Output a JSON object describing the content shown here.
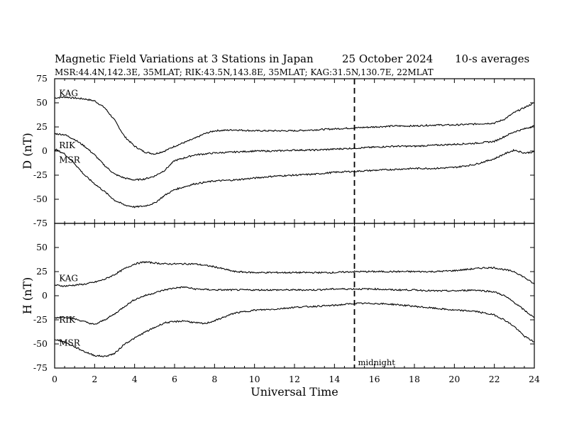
{
  "header": {
    "title": "Magnetic Field Variations at 3 Stations in Japan",
    "date": "25 October 2024",
    "averaging": "10-s averages",
    "stations_line": "MSR:44.4N,142.3E, 35MLAT;  RIK:43.5N,143.8E, 35MLAT;  KAG:31.5N,130.7E, 22MLAT"
  },
  "annotation": {
    "midnight_label": "midnight",
    "midnight_ut": 15
  },
  "chart_data": [
    {
      "type": "line",
      "panel": "top",
      "ylabel": "D (nT)",
      "xlabel": "",
      "xlim": [
        0,
        24
      ],
      "ylim": [
        -75,
        75
      ],
      "yticks": [
        75,
        50,
        25,
        0,
        -25,
        -50,
        -75
      ],
      "series": [
        {
          "name": "KAG",
          "x": [
            0,
            0.5,
            1,
            1.5,
            2,
            2.5,
            3,
            3.5,
            4,
            4.5,
            5,
            5.5,
            6,
            6.5,
            7,
            7.5,
            8,
            9,
            10,
            11,
            12,
            13,
            14,
            15,
            16,
            17,
            18,
            19,
            20,
            21,
            22,
            22.5,
            23,
            23.5,
            24
          ],
          "y": [
            55,
            56,
            55,
            54,
            52,
            45,
            32,
            15,
            5,
            -1,
            -3,
            0,
            5,
            9,
            13,
            18,
            21,
            22,
            21,
            21,
            21,
            22,
            23,
            24,
            25,
            26,
            26,
            27,
            27,
            28,
            29,
            33,
            40,
            45,
            50
          ]
        },
        {
          "name": "RIK",
          "x": [
            0,
            0.5,
            1,
            1.5,
            2,
            2.5,
            3,
            3.5,
            4,
            4.5,
            5,
            5.5,
            6,
            6.5,
            7,
            8,
            9,
            10,
            11,
            12,
            13,
            14,
            15,
            16,
            17,
            18,
            19,
            20,
            21,
            22,
            22.5,
            23,
            23.5,
            24
          ],
          "y": [
            18,
            17,
            12,
            5,
            -4,
            -15,
            -24,
            -28,
            -30,
            -29,
            -26,
            -20,
            -10,
            -7,
            -4,
            -2,
            -1,
            0,
            0,
            1,
            1,
            2,
            3,
            4,
            5,
            5,
            6,
            7,
            8,
            10,
            15,
            20,
            23,
            26
          ]
        },
        {
          "name": "MSR",
          "x": [
            0,
            0.5,
            1,
            1.5,
            2,
            2.5,
            3,
            3.5,
            4,
            4.5,
            5,
            5.5,
            6,
            6.5,
            7,
            8,
            9,
            10,
            11,
            12,
            13,
            14,
            15,
            16,
            17,
            18,
            19,
            20,
            21,
            22,
            22.5,
            23,
            23.5,
            24
          ],
          "y": [
            2,
            -3,
            -13,
            -25,
            -34,
            -42,
            -51,
            -56,
            -58,
            -57,
            -54,
            -46,
            -40,
            -37,
            -34,
            -31,
            -30,
            -28,
            -26,
            -25,
            -24,
            -22,
            -21,
            -20,
            -19,
            -18,
            -18,
            -17,
            -14,
            -8,
            -3,
            1,
            -2,
            -1
          ]
        }
      ],
      "station_labels": [
        {
          "text": "KAG",
          "x": 0.15,
          "y": 57
        },
        {
          "text": "RIK",
          "x": 0.15,
          "y": 3
        },
        {
          "text": "MSR",
          "x": 0.15,
          "y": -12
        }
      ]
    },
    {
      "type": "line",
      "panel": "bottom",
      "ylabel": "H (nT)",
      "xlabel": "Universal Time",
      "xlim": [
        0,
        24
      ],
      "ylim": [
        -75,
        75
      ],
      "yticks": [
        50,
        25,
        0,
        -25,
        -50,
        -75
      ],
      "xticks": [
        0,
        2,
        4,
        6,
        8,
        10,
        12,
        14,
        16,
        18,
        20,
        22,
        24
      ],
      "series": [
        {
          "name": "KAG",
          "x": [
            0,
            0.5,
            1,
            1.5,
            2,
            2.5,
            3,
            3.5,
            4,
            4.5,
            5,
            5.5,
            6,
            7,
            8,
            9,
            10,
            11,
            12,
            13,
            14,
            15,
            16,
            17,
            18,
            19,
            20,
            21,
            21.5,
            22,
            22.5,
            23,
            23.5,
            24
          ],
          "y": [
            11,
            10,
            11,
            12,
            14,
            17,
            22,
            28,
            33,
            35,
            34,
            33,
            33,
            33,
            30,
            25,
            24,
            24,
            24,
            24,
            24,
            25,
            25,
            25,
            25,
            25,
            26,
            28,
            29,
            29,
            27,
            25,
            19,
            12
          ]
        },
        {
          "name": "RIK",
          "x": [
            0,
            0.5,
            1,
            1.5,
            2,
            2.5,
            3,
            3.5,
            4,
            4.5,
            5,
            5.5,
            6,
            6.5,
            7,
            8,
            9,
            10,
            11,
            12,
            13,
            14,
            15,
            16,
            17,
            18,
            19,
            20,
            21,
            22,
            22.5,
            23,
            23.5,
            24
          ],
          "y": [
            -23,
            -22,
            -24,
            -27,
            -30,
            -25,
            -19,
            -11,
            -4,
            0,
            3,
            6,
            8,
            9,
            7,
            6,
            6,
            6,
            6,
            6,
            6,
            7,
            7,
            7,
            6,
            6,
            5,
            5,
            6,
            4,
            0,
            -7,
            -15,
            -23
          ]
        },
        {
          "name": "MSR",
          "x": [
            0,
            0.5,
            1,
            1.5,
            2,
            2.5,
            3,
            3.5,
            4,
            4.5,
            5,
            5.5,
            6,
            6.5,
            7,
            7.5,
            8,
            9,
            10,
            11,
            12,
            13,
            14,
            15,
            16,
            17,
            18,
            19,
            20,
            21,
            22,
            22.5,
            23,
            23.5,
            24
          ],
          "y": [
            -45,
            -48,
            -53,
            -58,
            -62,
            -63,
            -60,
            -50,
            -44,
            -38,
            -33,
            -28,
            -27,
            -26,
            -28,
            -29,
            -26,
            -18,
            -15,
            -14,
            -12,
            -11,
            -10,
            -8,
            -8,
            -9,
            -11,
            -13,
            -15,
            -16,
            -20,
            -25,
            -32,
            -42,
            -48
          ]
        }
      ],
      "station_labels": [
        {
          "text": "KAG",
          "x": 0.15,
          "y": 15
        },
        {
          "text": "RIK",
          "x": 0.15,
          "y": -28
        },
        {
          "text": "MSR",
          "x": 0.15,
          "y": -52
        }
      ]
    }
  ]
}
